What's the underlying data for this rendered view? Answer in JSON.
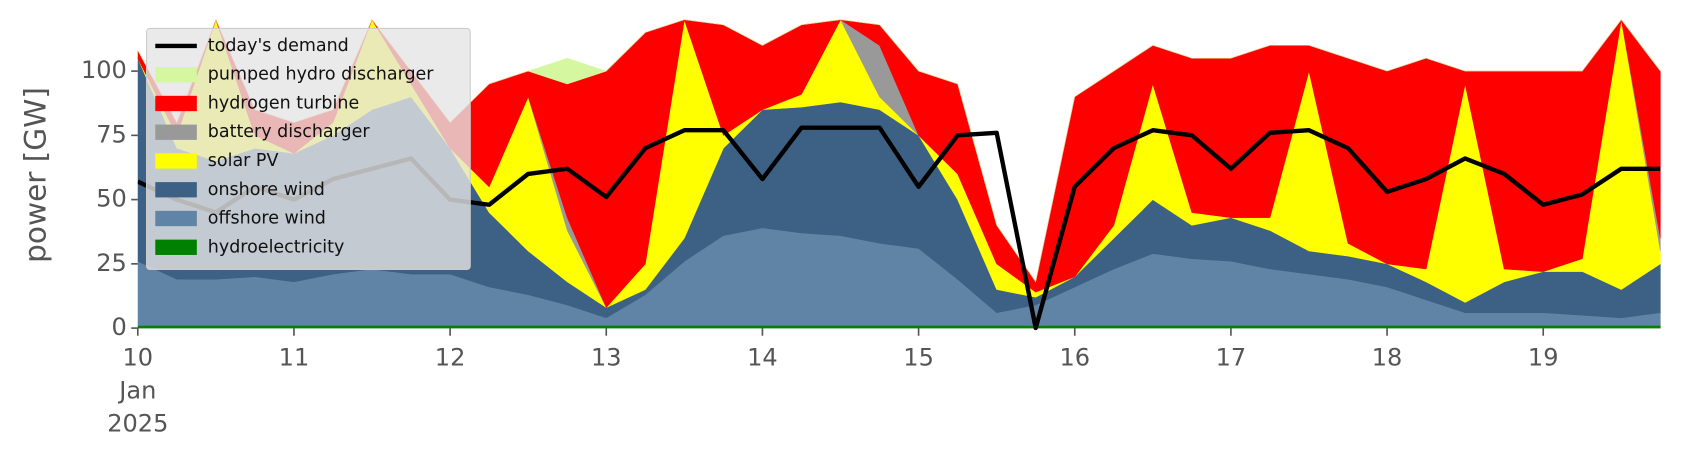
{
  "chart_data": {
    "type": "stacked_area",
    "y_label": "power [GW]",
    "x": [
      "2025-01-10T00:00",
      "2025-01-10T06:00",
      "2025-01-10T12:00",
      "2025-01-10T18:00",
      "2025-01-11T00:00",
      "2025-01-11T06:00",
      "2025-01-11T12:00",
      "2025-01-11T18:00",
      "2025-01-12T00:00",
      "2025-01-12T06:00",
      "2025-01-12T12:00",
      "2025-01-12T18:00",
      "2025-01-13T00:00",
      "2025-01-13T06:00",
      "2025-01-13T12:00",
      "2025-01-13T18:00",
      "2025-01-14T00:00",
      "2025-01-14T06:00",
      "2025-01-14T12:00",
      "2025-01-14T18:00",
      "2025-01-15T00:00",
      "2025-01-15T06:00",
      "2025-01-15T12:00",
      "2025-01-15T18:00",
      "2025-01-16T00:00",
      "2025-01-16T06:00",
      "2025-01-16T12:00",
      "2025-01-16T18:00",
      "2025-01-17T00:00",
      "2025-01-17T06:00",
      "2025-01-17T12:00",
      "2025-01-17T18:00",
      "2025-01-18T00:00",
      "2025-01-18T06:00",
      "2025-01-18T12:00",
      "2025-01-18T18:00",
      "2025-01-19T00:00",
      "2025-01-19T06:00",
      "2025-01-19T12:00",
      "2025-01-19T18:00"
    ],
    "series": [
      {
        "name": "hydroelectricity",
        "color": "#008000",
        "values": [
          1,
          1,
          1,
          1,
          1,
          1,
          1,
          1,
          1,
          1,
          1,
          1,
          1,
          1,
          1,
          1,
          1,
          1,
          1,
          1,
          1,
          1,
          1,
          1,
          1,
          1,
          1,
          1,
          1,
          1,
          1,
          1,
          1,
          1,
          1,
          1,
          1,
          1,
          1,
          1
        ]
      },
      {
        "name": "offshore wind",
        "color": "#5f84a6",
        "values": [
          25,
          18,
          18,
          19,
          17,
          20,
          22,
          20,
          20,
          15,
          12,
          8,
          3,
          12,
          25,
          35,
          38,
          36,
          35,
          32,
          30,
          18,
          5,
          8,
          15,
          22,
          28,
          26,
          25,
          22,
          20,
          18,
          15,
          10,
          5,
          5,
          5,
          4,
          3,
          5
        ]
      },
      {
        "name": "onshore wind",
        "color": "#3c6185",
        "values": [
          79,
          51,
          46,
          50,
          50,
          54,
          62,
          69,
          49,
          29,
          17,
          9,
          4,
          2,
          9,
          34,
          46,
          49,
          52,
          52,
          44,
          31,
          9,
          3,
          4,
          12,
          21,
          13,
          17,
          15,
          9,
          9,
          9,
          7,
          4,
          12,
          16,
          17,
          11,
          19
        ]
      },
      {
        "name": "solar PV",
        "color": "#ffff00",
        "values": [
          0,
          5,
          55,
          5,
          0,
          5,
          35,
          5,
          0,
          10,
          60,
          20,
          0,
          10,
          85,
          5,
          0,
          5,
          32,
          5,
          0,
          10,
          10,
          2,
          0,
          5,
          45,
          5,
          0,
          5,
          70,
          5,
          0,
          5,
          85,
          5,
          0,
          5,
          105,
          5
        ]
      },
      {
        "name": "battery discharger",
        "color": "#999999",
        "values": [
          0,
          0,
          0,
          0,
          0,
          0,
          0,
          0,
          0,
          0,
          0,
          5,
          0,
          0,
          0,
          0,
          0,
          0,
          0,
          20,
          0,
          0,
          0,
          0,
          0,
          0,
          0,
          0,
          0,
          0,
          0,
          0,
          0,
          0,
          0,
          0,
          0,
          0,
          0,
          5
        ]
      },
      {
        "name": "hydrogen turbine",
        "color": "#ff0000",
        "values": [
          3,
          5,
          0,
          10,
          12,
          5,
          0,
          5,
          10,
          40,
          10,
          52,
          92,
          90,
          0,
          43,
          25,
          27,
          0,
          8,
          25,
          35,
          15,
          4,
          70,
          60,
          15,
          60,
          62,
          67,
          10,
          72,
          75,
          82,
          5,
          77,
          78,
          73,
          0,
          65
        ]
      },
      {
        "name": "pumped hydro discharger",
        "color": "#d4f7a0",
        "values": [
          0,
          0,
          0,
          0,
          0,
          0,
          0,
          0,
          0,
          0,
          0,
          10,
          0,
          0,
          0,
          0,
          0,
          0,
          0,
          0,
          0,
          0,
          0,
          0,
          0,
          0,
          0,
          0,
          0,
          0,
          0,
          0,
          0,
          0,
          0,
          0,
          0,
          0,
          0,
          0
        ]
      }
    ],
    "line": {
      "name": "today's demand",
      "color": "#000000",
      "values": [
        57,
        50,
        45,
        55,
        50,
        58,
        62,
        66,
        50,
        48,
        60,
        62,
        51,
        70,
        77,
        77,
        58,
        78,
        78,
        78,
        55,
        75,
        76,
        0,
        55,
        70,
        77,
        75,
        62,
        76,
        77,
        70,
        53,
        58,
        66,
        60,
        48,
        52,
        62,
        62
      ]
    },
    "xlim": [
      "2025-01-10T00:00",
      "2025-01-19T23:00"
    ],
    "xticks": [
      {
        "value": "2025-01-10",
        "label": [
          "10",
          "Jan",
          "2025"
        ]
      },
      {
        "value": "2025-01-11",
        "label": "11"
      },
      {
        "value": "2025-01-12",
        "label": "12"
      },
      {
        "value": "2025-01-13",
        "label": "13"
      },
      {
        "value": "2025-01-14",
        "label": "14"
      },
      {
        "value": "2025-01-15",
        "label": "15"
      },
      {
        "value": "2025-01-16",
        "label": "16"
      },
      {
        "value": "2025-01-17",
        "label": "17"
      },
      {
        "value": "2025-01-18",
        "label": "18"
      },
      {
        "value": "2025-01-19",
        "label": "19"
      }
    ],
    "ylim": [
      0,
      120
    ],
    "yticks": [
      0,
      25,
      50,
      75,
      100
    ],
    "legend": "upper left"
  }
}
